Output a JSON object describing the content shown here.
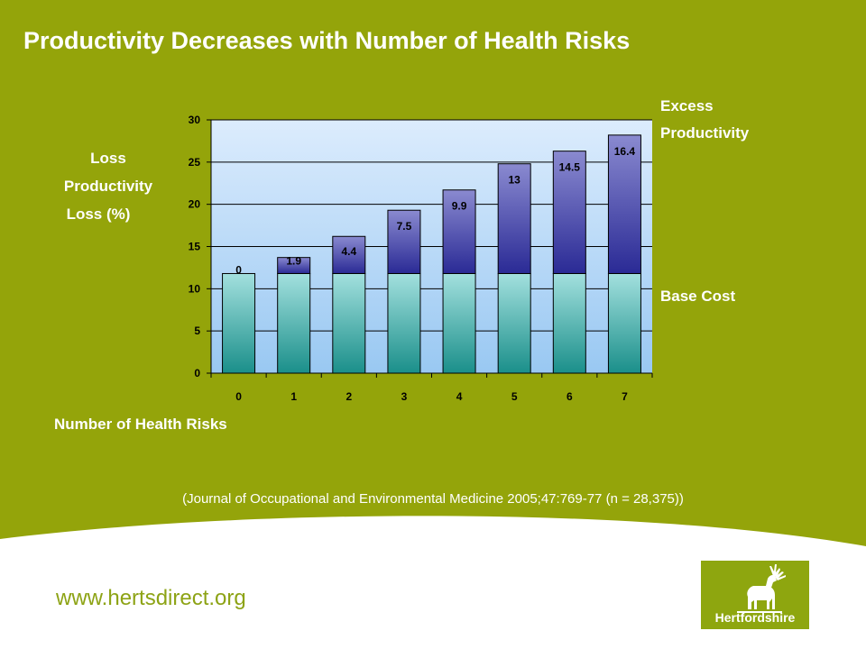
{
  "slide": {
    "title": "Productivity Decreases with Number of Health Risks",
    "citation": "(Journal of Occupational and Environmental Medicine 2005;47:769-77 (n = 28,375))",
    "website": "www.hertsdirect.org",
    "logo_text": "Hertfordshire",
    "colors": {
      "background_green": "#94a40a",
      "footer_white": "#ffffff",
      "website_green": "#8da315",
      "excess_bar": "#3a3aa0",
      "base_bar": "#5bbcb8",
      "plot_bg": "#c8e0fa"
    }
  },
  "chart_data": {
    "type": "bar",
    "stacked": true,
    "categories": [
      "0",
      "1",
      "2",
      "3",
      "4",
      "5",
      "6",
      "7"
    ],
    "series": [
      {
        "name": "Base Cost",
        "values": [
          11.8,
          11.8,
          11.8,
          11.8,
          11.8,
          11.8,
          11.8,
          11.8
        ],
        "color": "#5bbcb8"
      },
      {
        "name": "Excess Productivity",
        "values": [
          0,
          1.9,
          4.4,
          7.5,
          9.9,
          13,
          14.5,
          16.4
        ],
        "color": "#3a3aa0"
      }
    ],
    "data_labels": [
      "0",
      "1.9",
      "4.4",
      "7.5",
      "9.9",
      "13",
      "14.5",
      "16.4"
    ],
    "ylabel_lines": [
      "Loss",
      "Productivity",
      " Loss (%)"
    ],
    "xlabel": "Number of Health Risks",
    "legend_excess_lines": [
      "Excess",
      "Productivity"
    ],
    "legend_base": "Base Cost",
    "ylim": [
      0,
      30
    ],
    "yticks": [
      0,
      5,
      10,
      15,
      20,
      25,
      30
    ],
    "grid": true
  }
}
